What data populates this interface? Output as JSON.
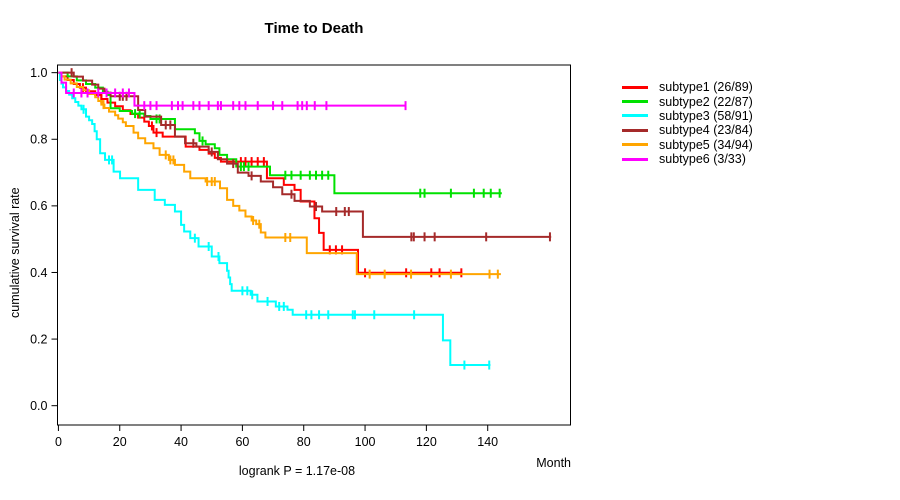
{
  "chart": {
    "title": "Time to Death",
    "y_axis_label": "cumulative survival rate",
    "x_axis_label": "Month",
    "subtitle": "logrank P = 1.17e-08"
  },
  "legend": {
    "position": "right",
    "items": [
      {
        "label": "subtype1 (26/89)",
        "color": "#FF0000"
      },
      {
        "label": "subtype2 (22/87)",
        "color": "#00E100"
      },
      {
        "label": "subtype3 (58/91)",
        "color": "#00FFFF"
      },
      {
        "label": "subtype4 (23/84)",
        "color": "#A52A2A"
      },
      {
        "label": "subtype5 (34/94)",
        "color": "#FFA500"
      },
      {
        "label": "subtype6 (3/33)",
        "color": "#FF00FF"
      }
    ]
  },
  "chart_data": {
    "type": "line",
    "variant": "kaplan-meier-step",
    "title": "Time to Death",
    "xlabel": "Month",
    "ylabel": "cumulative survival rate",
    "annotation": "logrank P = 1.17e-08",
    "grid": false,
    "legend_position": "right",
    "x_ticks": [
      0,
      20,
      40,
      60,
      80,
      100,
      120,
      140
    ],
    "y_ticks": [
      0.0,
      0.2,
      0.4,
      0.6,
      0.8,
      1.0
    ],
    "xlim": [
      -0.3,
      167
    ],
    "ylim": [
      -0.058,
      1.023
    ],
    "series": [
      {
        "name": "subtype1 (26/89)",
        "color": "#FF0000",
        "steps": [
          [
            0,
            1
          ],
          [
            1,
            0.989
          ],
          [
            3,
            0.978
          ],
          [
            5,
            0.966
          ],
          [
            7,
            0.955
          ],
          [
            9,
            0.944
          ],
          [
            12,
            0.933
          ],
          [
            14,
            0.921
          ],
          [
            16,
            0.91
          ],
          [
            18.5,
            0.899
          ],
          [
            21,
            0.887
          ],
          [
            23.5,
            0.876
          ],
          [
            26,
            0.865
          ],
          [
            28,
            0.853
          ],
          [
            29.5,
            0.84
          ],
          [
            31,
            0.82
          ],
          [
            34,
            0.808
          ],
          [
            41.5,
            0.778
          ],
          [
            46,
            0.768
          ],
          [
            49,
            0.757
          ],
          [
            51,
            0.744
          ],
          [
            53,
            0.733
          ],
          [
            68,
            0.683
          ],
          [
            73.5,
            0.663
          ],
          [
            77,
            0.648
          ],
          [
            79,
            0.613
          ],
          [
            83.5,
            0.563
          ],
          [
            85,
            0.519
          ],
          [
            86.5,
            0.468
          ],
          [
            97.7,
            0.399
          ]
        ],
        "end_month": 131.7,
        "censor_months": [
          8,
          14,
          30.5,
          32,
          59.5,
          61,
          63,
          65,
          67,
          88.5,
          90.5,
          92.5,
          100,
          113.4,
          121.6,
          124.3,
          131.4
        ]
      },
      {
        "name": "subtype2 (22/87)",
        "color": "#00E100",
        "steps": [
          [
            0,
            1
          ],
          [
            3,
            0.989
          ],
          [
            6,
            0.977
          ],
          [
            9,
            0.966
          ],
          [
            12,
            0.955
          ],
          [
            14.5,
            0.943
          ],
          [
            16,
            0.933
          ],
          [
            17,
            0.893
          ],
          [
            20,
            0.885
          ],
          [
            24,
            0.877
          ],
          [
            28,
            0.87
          ],
          [
            30,
            0.861
          ],
          [
            38,
            0.83
          ],
          [
            44.5,
            0.818
          ],
          [
            46,
            0.795
          ],
          [
            48,
            0.785
          ],
          [
            51,
            0.773
          ],
          [
            52.5,
            0.753
          ],
          [
            55,
            0.74
          ],
          [
            58,
            0.718
          ],
          [
            69,
            0.692
          ],
          [
            90,
            0.638
          ]
        ],
        "end_month": 144.6,
        "censor_months": [
          25,
          26.5,
          32,
          33,
          47,
          59.5,
          60.5,
          62,
          74,
          76,
          79,
          82,
          84,
          86,
          88,
          118,
          119.4,
          128,
          135.5,
          138.7,
          141,
          143.9
        ]
      },
      {
        "name": "subtype3 (58/91)",
        "color": "#00FFFF",
        "steps": [
          [
            0,
            1
          ],
          [
            0.5,
            0.978
          ],
          [
            1,
            0.967
          ],
          [
            1.5,
            0.956
          ],
          [
            2.5,
            0.945
          ],
          [
            3.5,
            0.934
          ],
          [
            4.5,
            0.923
          ],
          [
            5.5,
            0.912
          ],
          [
            6.5,
            0.901
          ],
          [
            7.5,
            0.89
          ],
          [
            9,
            0.868
          ],
          [
            10,
            0.857
          ],
          [
            11,
            0.846
          ],
          [
            11.8,
            0.824
          ],
          [
            12.5,
            0.8
          ],
          [
            13.6,
            0.758
          ],
          [
            15.2,
            0.738
          ],
          [
            18,
            0.703
          ],
          [
            20.1,
            0.683
          ],
          [
            26,
            0.648
          ],
          [
            31.4,
            0.618
          ],
          [
            34.7,
            0.603
          ],
          [
            38,
            0.583
          ],
          [
            40,
            0.543
          ],
          [
            41,
            0.523
          ],
          [
            43,
            0.503
          ],
          [
            45.7,
            0.478
          ],
          [
            50,
            0.448
          ],
          [
            52.5,
            0.428
          ],
          [
            55,
            0.405
          ],
          [
            55.5,
            0.385
          ],
          [
            56,
            0.365
          ],
          [
            56.5,
            0.345
          ],
          [
            62.7,
            0.333
          ],
          [
            64.9,
            0.313
          ],
          [
            70.9,
            0.298
          ],
          [
            74.7,
            0.288
          ],
          [
            76.4,
            0.273
          ],
          [
            125.4,
            0.196
          ],
          [
            127.8,
            0.122
          ]
        ],
        "end_month": 140.9,
        "censor_months": [
          8.2,
          16.5,
          17.5,
          44.5,
          49,
          52.2,
          60,
          61.6,
          63.2,
          68.2,
          72,
          73.5,
          80.8,
          82.5,
          85,
          88,
          96,
          96.7,
          103,
          116,
          132.4,
          140.5
        ]
      },
      {
        "name": "subtype4 (23/84)",
        "color": "#A52A2A",
        "steps": [
          [
            0,
            1
          ],
          [
            5,
            0.988
          ],
          [
            8,
            0.976
          ],
          [
            11,
            0.964
          ],
          [
            13,
            0.952
          ],
          [
            15,
            0.94
          ],
          [
            17,
            0.929
          ],
          [
            26,
            0.888
          ],
          [
            28.3,
            0.868
          ],
          [
            33.5,
            0.843
          ],
          [
            38,
            0.808
          ],
          [
            41.3,
            0.788
          ],
          [
            45,
            0.778
          ],
          [
            49,
            0.762
          ],
          [
            52,
            0.74
          ],
          [
            55,
            0.727
          ],
          [
            58.5,
            0.7
          ],
          [
            62,
            0.69
          ],
          [
            66,
            0.673
          ],
          [
            70,
            0.656
          ],
          [
            73,
            0.635
          ],
          [
            77,
            0.615
          ],
          [
            82,
            0.598
          ],
          [
            86,
            0.583
          ],
          [
            99.3,
            0.507
          ]
        ],
        "end_month": 160.7,
        "censor_months": [
          4.3,
          20,
          21,
          22.2,
          35,
          36.5,
          44,
          50,
          57,
          63,
          76,
          84,
          90.6,
          93.4,
          94.7,
          115.1,
          115.9,
          119.4,
          122.7,
          139.5,
          160.3
        ]
      },
      {
        "name": "subtype5 (34/94)",
        "color": "#FFA500",
        "steps": [
          [
            0,
            1
          ],
          [
            1,
            0.989
          ],
          [
            2,
            0.979
          ],
          [
            4,
            0.968
          ],
          [
            6,
            0.957
          ],
          [
            8,
            0.947
          ],
          [
            10,
            0.936
          ],
          [
            12,
            0.926
          ],
          [
            13,
            0.915
          ],
          [
            14,
            0.904
          ],
          [
            15,
            0.894
          ],
          [
            16.5,
            0.883
          ],
          [
            18.5,
            0.872
          ],
          [
            19.5,
            0.862
          ],
          [
            21,
            0.851
          ],
          [
            22,
            0.84
          ],
          [
            24.5,
            0.82
          ],
          [
            26,
            0.803
          ],
          [
            28.3,
            0.788
          ],
          [
            31,
            0.773
          ],
          [
            33,
            0.753
          ],
          [
            36,
            0.738
          ],
          [
            38,
            0.723
          ],
          [
            41,
            0.703
          ],
          [
            43,
            0.683
          ],
          [
            48,
            0.673
          ],
          [
            52.7,
            0.653
          ],
          [
            55,
            0.618
          ],
          [
            57,
            0.6
          ],
          [
            59,
            0.586
          ],
          [
            61,
            0.568
          ],
          [
            63,
            0.556
          ],
          [
            64.5,
            0.545
          ],
          [
            66,
            0.52
          ],
          [
            67.5,
            0.505
          ],
          [
            81,
            0.458
          ],
          [
            97.3,
            0.395
          ]
        ],
        "end_month": 144.3,
        "censor_months": [
          14.7,
          35,
          36.5,
          37.5,
          48.5,
          50,
          51,
          63.5,
          65.5,
          74,
          75.6,
          101.5,
          106.4,
          115,
          128,
          140.6,
          143.3
        ]
      },
      {
        "name": "subtype6 (3/33)",
        "color": "#FF00FF",
        "steps": [
          [
            0,
            1
          ],
          [
            1,
            0.97
          ],
          [
            2.5,
            0.939
          ],
          [
            24.8,
            0.901
          ]
        ],
        "end_month": 113.5,
        "censor_months": [
          5,
          7.5,
          9.5,
          13,
          15.7,
          18.5,
          21,
          23,
          28,
          30,
          32,
          37,
          39,
          40.5,
          44,
          46,
          49,
          52,
          53,
          57,
          59,
          61,
          65,
          70,
          73,
          78,
          79.5,
          81,
          83.6,
          87.4,
          113.2
        ]
      }
    ]
  }
}
